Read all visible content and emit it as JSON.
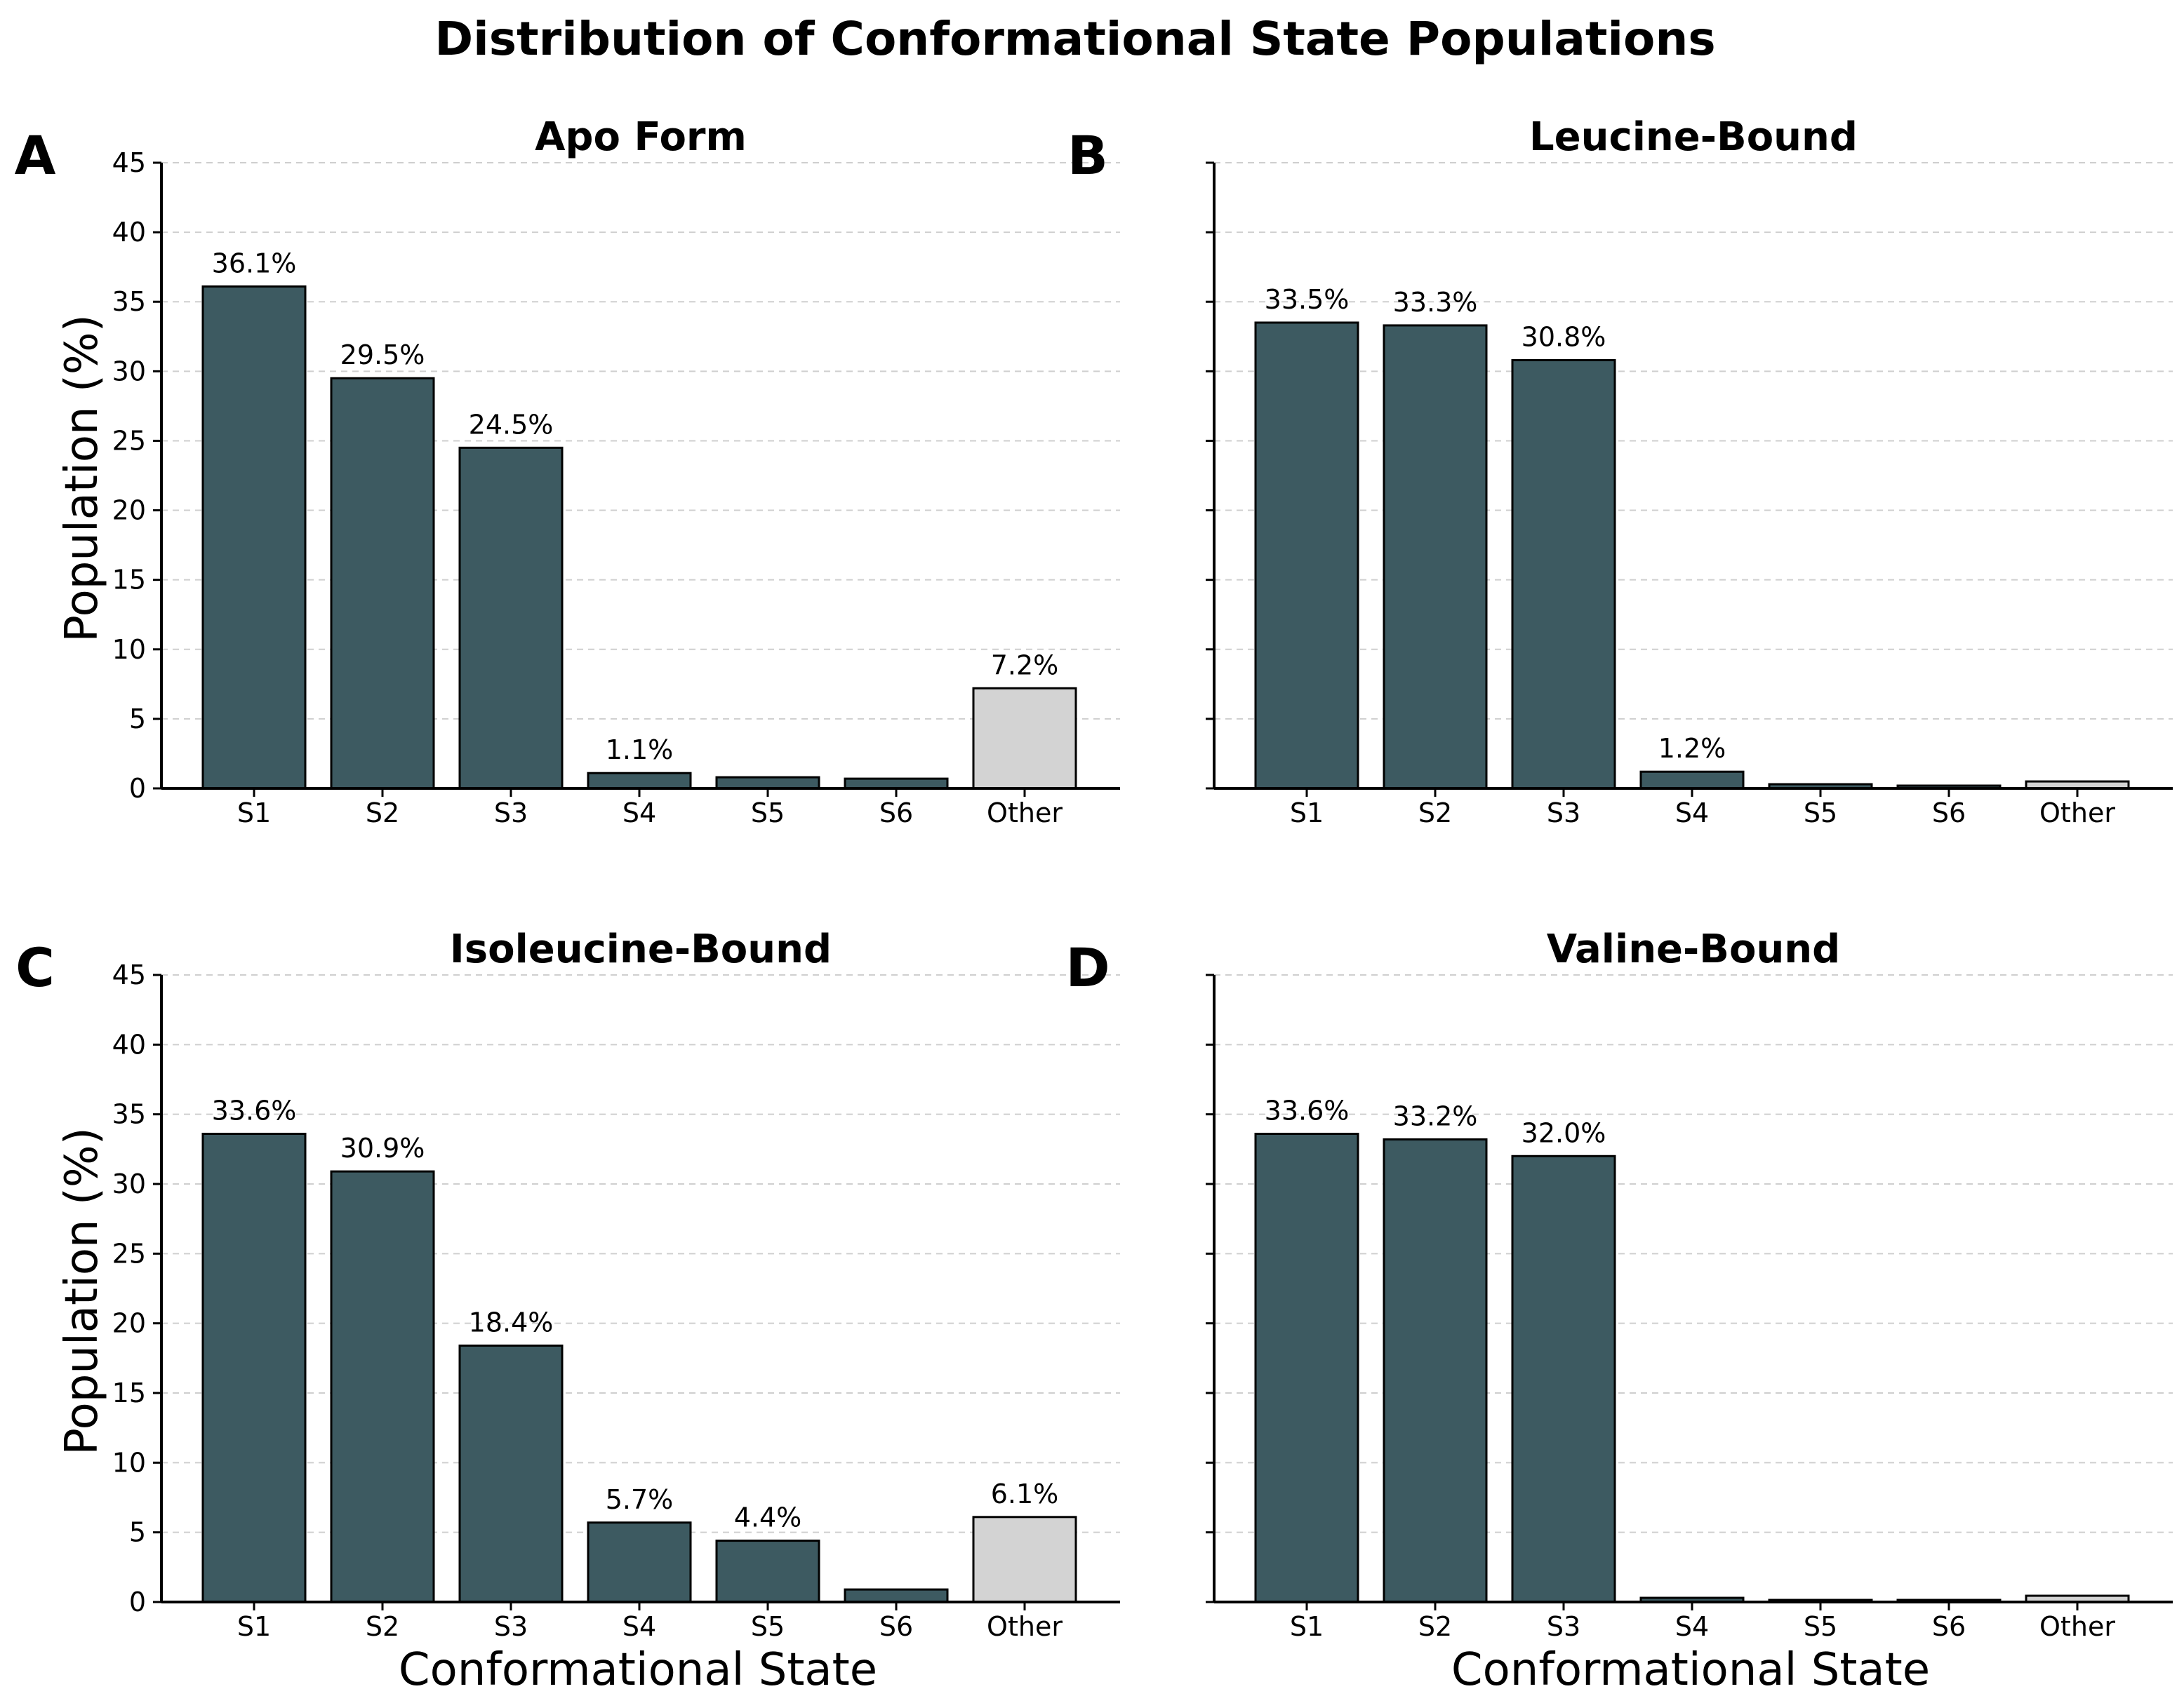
{
  "title": "Distribution of Conformational State Populations",
  "colors": {
    "primary_bar": "#3d5a61",
    "other_bar": "#d3d3d3",
    "grid": "#cfcfcf"
  },
  "chart_data": [
    {
      "type": "bar",
      "panel": "A",
      "title": "Apo Form",
      "xlabel": "",
      "ylabel": "Population (%)",
      "ylim": [
        0,
        45
      ],
      "yticks": [
        0,
        5,
        10,
        15,
        20,
        25,
        30,
        35,
        40,
        45
      ],
      "show_ytick_labels": true,
      "categories": [
        "S1",
        "S2",
        "S3",
        "S4",
        "S5",
        "S6",
        "Other"
      ],
      "values": [
        36.1,
        29.5,
        24.5,
        1.1,
        0.8,
        0.7,
        7.2
      ],
      "labels": [
        "36.1%",
        "29.5%",
        "24.5%",
        "1.1%",
        "",
        "",
        "7.2%"
      ]
    },
    {
      "type": "bar",
      "panel": "B",
      "title": "Leucine-Bound",
      "xlabel": "",
      "ylabel": "",
      "ylim": [
        0,
        45
      ],
      "yticks": [
        0,
        5,
        10,
        15,
        20,
        25,
        30,
        35,
        40,
        45
      ],
      "show_ytick_labels": false,
      "categories": [
        "S1",
        "S2",
        "S3",
        "S4",
        "S5",
        "S6",
        "Other"
      ],
      "values": [
        33.5,
        33.3,
        30.8,
        1.2,
        0.3,
        0.2,
        0.5
      ],
      "labels": [
        "33.5%",
        "33.3%",
        "30.8%",
        "1.2%",
        "",
        "",
        ""
      ]
    },
    {
      "type": "bar",
      "panel": "C",
      "title": "Isoleucine-Bound",
      "xlabel": "Conformational State",
      "ylabel": "Population (%)",
      "ylim": [
        0,
        45
      ],
      "yticks": [
        0,
        5,
        10,
        15,
        20,
        25,
        30,
        35,
        40,
        45
      ],
      "show_ytick_labels": true,
      "categories": [
        "S1",
        "S2",
        "S3",
        "S4",
        "S5",
        "S6",
        "Other"
      ],
      "values": [
        33.6,
        30.9,
        18.4,
        5.7,
        4.4,
        0.9,
        6.1
      ],
      "labels": [
        "33.6%",
        "30.9%",
        "18.4%",
        "5.7%",
        "4.4%",
        "",
        "6.1%"
      ]
    },
    {
      "type": "bar",
      "panel": "D",
      "title": "Valine-Bound",
      "xlabel": "Conformational State",
      "ylabel": "",
      "ylim": [
        0,
        45
      ],
      "yticks": [
        0,
        5,
        10,
        15,
        20,
        25,
        30,
        35,
        40,
        45
      ],
      "show_ytick_labels": false,
      "categories": [
        "S1",
        "S2",
        "S3",
        "S4",
        "S5",
        "S6",
        "Other"
      ],
      "values": [
        33.6,
        33.2,
        32.0,
        0.3,
        0.15,
        0.15,
        0.45
      ],
      "labels": [
        "33.6%",
        "33.2%",
        "32.0%",
        "",
        "",
        "",
        ""
      ]
    }
  ]
}
